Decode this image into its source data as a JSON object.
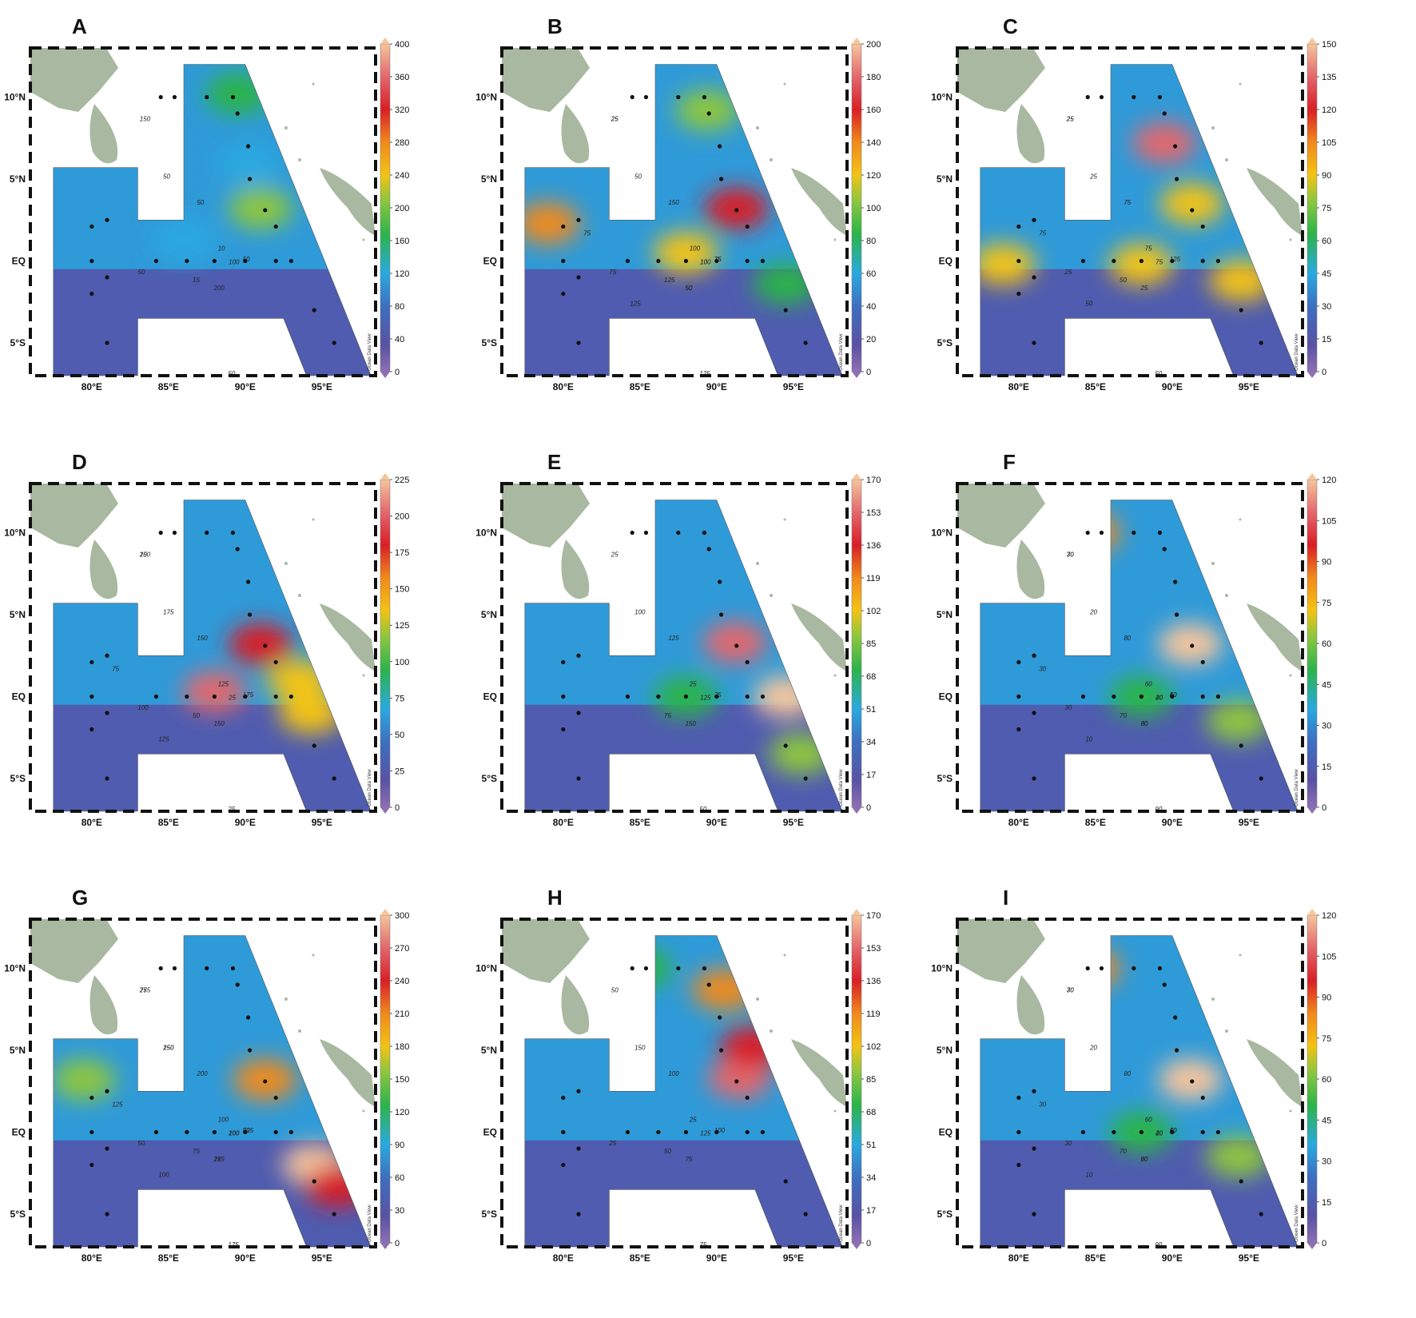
{
  "figure": {
    "axis_labels": {
      "x": [
        "80°E",
        "85°E",
        "90°E",
        "95°E"
      ],
      "y": [
        "10°N",
        "5°N",
        "EQ",
        "5°S"
      ]
    },
    "watermark": "Ocean Data View",
    "panels": [
      {
        "label": "A",
        "colorbar": {
          "max": 400,
          "ticks": [
            0,
            40,
            80,
            120,
            160,
            200,
            240,
            280,
            320,
            360,
            400
          ]
        },
        "contours": [
          "150",
          "50",
          "200",
          "100",
          "50",
          "50",
          "50",
          "15",
          "10",
          "50"
        ],
        "hotspots": [
          [
            91,
            3.2,
            200
          ],
          [
            89.5,
            10.2,
            150
          ],
          [
            90.2,
            6,
            120
          ],
          [
            86,
            1.3,
            90
          ]
        ]
      },
      {
        "label": "B",
        "colorbar": {
          "max": 200,
          "ticks": [
            0,
            20,
            40,
            60,
            80,
            100,
            120,
            140,
            160,
            180,
            200
          ]
        },
        "contours": [
          "25",
          "75",
          "50",
          "100",
          "50",
          "150",
          "125",
          "125",
          "100",
          "75",
          "125",
          "75",
          "25",
          "75",
          "50",
          "10"
        ],
        "hotspots": [
          [
            91.3,
            3.2,
            150
          ],
          [
            79,
            2.3,
            125
          ],
          [
            88,
            0.5,
            120
          ],
          [
            89.4,
            9.2,
            100
          ],
          [
            94.5,
            -1.4,
            75
          ]
        ]
      },
      {
        "label": "C",
        "colorbar": {
          "max": 150,
          "ticks": [
            0,
            15,
            30,
            45,
            60,
            75,
            90,
            105,
            120,
            135,
            150
          ]
        },
        "contours": [
          "25",
          "125",
          "25",
          "75",
          "25",
          "75",
          "50",
          "50",
          "75",
          "25",
          "50",
          "75",
          "25"
        ],
        "hotspots": [
          [
            89.5,
            7.2,
            125
          ],
          [
            91.3,
            3.5,
            80
          ],
          [
            88,
            -0.2,
            85
          ],
          [
            79,
            -0.2,
            80
          ],
          [
            94.5,
            -1.2,
            85
          ]
        ]
      },
      {
        "label": "D",
        "colorbar": {
          "max": 225,
          "ticks": [
            0,
            25,
            50,
            75,
            100,
            125,
            150,
            175,
            200,
            225
          ]
        },
        "contours": [
          "25",
          "175",
          "150",
          "25",
          "175",
          "150",
          "25",
          "50",
          "125",
          "100",
          "125",
          "75",
          "100"
        ],
        "hotspots": [
          [
            91,
            3.2,
            175
          ],
          [
            88,
            0.3,
            200
          ],
          [
            93.5,
            1.0,
            120
          ],
          [
            94.3,
            -1.0,
            130
          ]
        ]
      },
      {
        "label": "E",
        "colorbar": {
          "max": 170,
          "ticks": [
            0,
            17,
            34,
            51,
            68,
            85,
            102,
            119,
            136,
            153,
            170
          ]
        },
        "contours": [
          "25",
          "25",
          "150",
          "125",
          "100",
          "125",
          "50",
          "75",
          "25"
        ],
        "hotspots": [
          [
            91.2,
            3.3,
            150
          ],
          [
            94.5,
            0,
            155
          ],
          [
            95.5,
            -3.5,
            80
          ],
          [
            88,
            0,
            70
          ]
        ]
      },
      {
        "label": "F",
        "colorbar": {
          "max": 120,
          "ticks": [
            0,
            15,
            30,
            45,
            60,
            75,
            90,
            105,
            120
          ]
        },
        "contours": [
          "70",
          "50",
          "30",
          "40",
          "20",
          "80",
          "90",
          "70",
          "60",
          "30",
          "10",
          "30",
          "30",
          "40",
          "60",
          "20"
        ],
        "hotspots": [
          [
            91.2,
            3.2,
            110
          ],
          [
            84.5,
            10,
            75
          ],
          [
            94.3,
            -1.5,
            58
          ],
          [
            88,
            0,
            45
          ]
        ]
      },
      {
        "label": "G",
        "colorbar": {
          "max": 300,
          "ticks": [
            0,
            30,
            60,
            90,
            120,
            150,
            180,
            210,
            240,
            270,
            300
          ]
        },
        "contours": [
          "75",
          "50",
          "25",
          "100",
          "150",
          "200",
          "175",
          "75",
          "100",
          "50",
          "100",
          "125",
          "275",
          "225",
          "175",
          "200",
          "250"
        ],
        "hotspots": [
          [
            94.5,
            -2.0,
            280
          ],
          [
            91.3,
            3.2,
            200
          ],
          [
            79.5,
            3.2,
            140
          ],
          [
            96,
            -3.3,
            240
          ]
        ]
      },
      {
        "label": "H",
        "colorbar": {
          "max": 170,
          "ticks": [
            0,
            17,
            34,
            51,
            68,
            85,
            102,
            119,
            136,
            153,
            170
          ]
        },
        "contours": [
          "50",
          "100",
          "75",
          "125",
          "150",
          "100",
          "75",
          "50",
          "25",
          "25"
        ],
        "hotspots": [
          [
            90.5,
            8.7,
            110
          ],
          [
            91.5,
            3.3,
            150
          ],
          [
            92.3,
            5.2,
            120
          ],
          [
            85,
            10,
            65
          ]
        ]
      },
      {
        "label": "I",
        "colorbar": {
          "max": 120,
          "ticks": [
            0,
            15,
            30,
            45,
            60,
            75,
            90,
            105,
            120
          ]
        },
        "contours": [
          "70",
          "50",
          "30",
          "40",
          "20",
          "80",
          "90",
          "70",
          "60",
          "30",
          "10",
          "30",
          "30",
          "40",
          "60",
          "20"
        ],
        "hotspots": [
          [
            91.2,
            3.2,
            110
          ],
          [
            84.5,
            10,
            75
          ],
          [
            94.3,
            -1.5,
            58
          ],
          [
            88,
            0,
            45
          ]
        ]
      }
    ],
    "stations": [
      [
        84.5,
        10
      ],
      [
        85.4,
        10
      ],
      [
        87.5,
        10
      ],
      [
        89.2,
        10
      ],
      [
        89.5,
        9
      ],
      [
        90.2,
        7
      ],
      [
        90.3,
        5
      ],
      [
        91.3,
        3.1
      ],
      [
        92.0,
        2.1
      ],
      [
        80,
        2.1
      ],
      [
        81,
        2.5
      ],
      [
        80,
        0
      ],
      [
        81,
        -1
      ],
      [
        80,
        -2
      ],
      [
        84.2,
        0
      ],
      [
        86.2,
        0
      ],
      [
        88,
        0
      ],
      [
        90,
        0
      ],
      [
        92,
        0
      ],
      [
        93,
        0
      ],
      [
        94.5,
        -3
      ],
      [
        95.8,
        -5
      ],
      [
        81,
        -5
      ]
    ]
  }
}
